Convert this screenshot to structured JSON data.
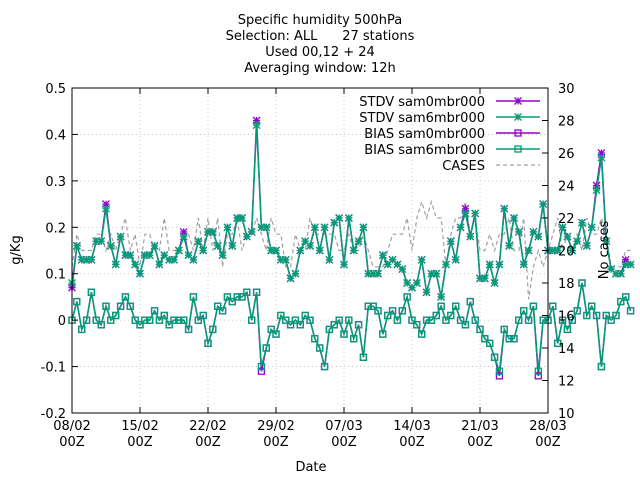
{
  "chart_data": {
    "type": "line",
    "title_lines": [
      "Specific humidity 500hPa",
      "Selection: ALL      27 stations",
      "Used 00,12 + 24",
      "Averaging window: 12h"
    ],
    "xlabel": "Date",
    "ylabel": "g/Kg",
    "y2label": "No cases",
    "x_range": [
      "08/02 00Z",
      "28/03 00Z"
    ],
    "x_ticks": [
      {
        "line1": "08/02",
        "line2": "00Z",
        "day": 0
      },
      {
        "line1": "15/02",
        "line2": "00Z",
        "day": 7
      },
      {
        "line1": "22/02",
        "line2": "00Z",
        "day": 14
      },
      {
        "line1": "29/02",
        "line2": "00Z",
        "day": 21
      },
      {
        "line1": "07/03",
        "line2": "00Z",
        "day": 28
      },
      {
        "line1": "14/03",
        "line2": "00Z",
        "day": 35
      },
      {
        "line1": "21/03",
        "line2": "00Z",
        "day": 42
      },
      {
        "line1": "28/03",
        "line2": "00Z",
        "day": 49
      }
    ],
    "ylim": [
      -0.2,
      0.5
    ],
    "y_ticks": [
      "-0.2",
      "-0.1",
      "0",
      "0.1",
      "0.2",
      "0.3",
      "0.4",
      "0.5"
    ],
    "y2lim": [
      10,
      30
    ],
    "y2_ticks": [
      "10",
      "12",
      "14",
      "16",
      "18",
      "20",
      "22",
      "24",
      "26",
      "28",
      "30"
    ],
    "legend_position": "top-right",
    "x_start_day": 0,
    "x_step_days": 0.5,
    "series": [
      {
        "name": "STDV sam0mbr000",
        "color": "#9400d3",
        "marker": "star",
        "dash": "solid",
        "axis": "y1",
        "values": [
          0.07,
          0.16,
          0.13,
          0.13,
          0.13,
          0.17,
          0.17,
          0.25,
          0.16,
          0.12,
          0.18,
          0.14,
          0.14,
          0.12,
          0.1,
          0.14,
          0.14,
          0.16,
          0.12,
          0.14,
          0.13,
          0.13,
          0.15,
          0.19,
          0.14,
          0.13,
          0.17,
          0.15,
          0.19,
          0.19,
          0.16,
          0.14,
          0.2,
          0.16,
          0.22,
          0.22,
          0.18,
          0.19,
          0.43,
          0.2,
          0.2,
          0.15,
          0.15,
          0.13,
          0.13,
          0.09,
          0.1,
          0.15,
          0.17,
          0.16,
          0.2,
          0.15,
          0.2,
          0.13,
          0.21,
          0.22,
          0.12,
          0.22,
          0.15,
          0.17,
          0.2,
          0.1,
          0.1,
          0.1,
          0.14,
          0.12,
          0.13,
          0.12,
          0.11,
          0.08,
          0.07,
          0.08,
          0.13,
          0.06,
          0.1,
          0.1,
          0.05,
          0.12,
          0.17,
          0.13,
          0.2,
          0.24,
          0.18,
          0.23,
          0.09,
          0.09,
          0.12,
          0.08,
          0.12,
          0.24,
          0.16,
          0.22,
          0.19,
          0.12,
          0.15,
          0.19,
          0.18,
          0.25,
          0.15,
          0.15,
          0.15,
          0.2,
          0.18,
          0.15,
          0.17,
          0.21,
          0.16,
          0.2,
          0.29,
          0.36,
          0.17,
          0.11,
          0.1,
          0.1,
          0.13,
          0.12
        ]
      },
      {
        "name": "STDV sam6mbr000",
        "color": "#009e73",
        "marker": "star",
        "dash": "solid",
        "axis": "y1",
        "values": [
          0.08,
          0.16,
          0.13,
          0.13,
          0.13,
          0.17,
          0.17,
          0.24,
          0.16,
          0.12,
          0.18,
          0.14,
          0.14,
          0.12,
          0.1,
          0.14,
          0.14,
          0.16,
          0.12,
          0.14,
          0.13,
          0.13,
          0.15,
          0.18,
          0.14,
          0.13,
          0.17,
          0.15,
          0.19,
          0.19,
          0.16,
          0.14,
          0.2,
          0.16,
          0.22,
          0.22,
          0.18,
          0.19,
          0.42,
          0.2,
          0.2,
          0.15,
          0.15,
          0.13,
          0.13,
          0.09,
          0.1,
          0.15,
          0.17,
          0.16,
          0.2,
          0.15,
          0.2,
          0.13,
          0.21,
          0.22,
          0.12,
          0.22,
          0.15,
          0.17,
          0.2,
          0.1,
          0.1,
          0.1,
          0.14,
          0.12,
          0.13,
          0.12,
          0.11,
          0.08,
          0.07,
          0.08,
          0.13,
          0.06,
          0.1,
          0.1,
          0.05,
          0.12,
          0.17,
          0.13,
          0.2,
          0.23,
          0.18,
          0.23,
          0.09,
          0.09,
          0.12,
          0.08,
          0.12,
          0.24,
          0.16,
          0.22,
          0.19,
          0.12,
          0.15,
          0.19,
          0.18,
          0.25,
          0.15,
          0.15,
          0.15,
          0.2,
          0.18,
          0.15,
          0.17,
          0.21,
          0.16,
          0.2,
          0.28,
          0.35,
          0.17,
          0.11,
          0.1,
          0.1,
          0.12,
          0.12
        ]
      },
      {
        "name": "BIAS sam0mbr000",
        "color": "#9400d3",
        "marker": "square",
        "dash": "solid",
        "axis": "y1",
        "values": [
          0.0,
          0.04,
          -0.02,
          0.0,
          0.06,
          0.0,
          -0.01,
          0.03,
          0.0,
          0.01,
          0.03,
          0.05,
          0.03,
          0.0,
          -0.01,
          0.0,
          0.0,
          0.02,
          0.0,
          0.01,
          -0.01,
          0.0,
          0.0,
          0.0,
          -0.02,
          0.05,
          0.0,
          0.01,
          -0.05,
          -0.02,
          0.03,
          0.02,
          0.05,
          0.04,
          0.05,
          0.05,
          0.06,
          0.0,
          0.06,
          -0.11,
          -0.06,
          -0.02,
          -0.03,
          0.01,
          0.0,
          -0.01,
          0.0,
          -0.01,
          0.01,
          0.0,
          -0.04,
          -0.06,
          -0.1,
          -0.02,
          -0.01,
          0.0,
          -0.03,
          0.0,
          -0.04,
          -0.01,
          -0.08,
          0.03,
          0.03,
          0.02,
          -0.03,
          0.01,
          0.02,
          0.0,
          0.02,
          0.05,
          0.0,
          -0.01,
          -0.03,
          0.0,
          0.0,
          0.01,
          0.03,
          0.0,
          0.01,
          0.03,
          0.0,
          -0.01,
          0.04,
          0.0,
          -0.02,
          -0.04,
          -0.05,
          -0.08,
          -0.12,
          -0.02,
          -0.04,
          -0.04,
          0.0,
          0.02,
          0.0,
          0.03,
          -0.12,
          0.0,
          0.0,
          0.03,
          -0.05,
          0.0,
          -0.02,
          0.0,
          0.02,
          0.08,
          0.01,
          0.03,
          0.01,
          -0.1,
          0.01,
          0.0,
          0.01,
          0.04,
          0.05,
          0.02
        ]
      },
      {
        "name": "BIAS sam6mbr000",
        "color": "#009e73",
        "marker": "square",
        "dash": "solid",
        "axis": "y1",
        "values": [
          0.0,
          0.04,
          -0.02,
          0.0,
          0.06,
          0.0,
          -0.01,
          0.03,
          0.0,
          0.01,
          0.03,
          0.05,
          0.03,
          0.0,
          -0.01,
          0.0,
          0.0,
          0.02,
          0.0,
          0.01,
          -0.01,
          0.0,
          0.0,
          0.0,
          -0.02,
          0.05,
          0.0,
          0.01,
          -0.05,
          -0.02,
          0.03,
          0.02,
          0.05,
          0.04,
          0.05,
          0.05,
          0.06,
          0.0,
          0.06,
          -0.1,
          -0.06,
          -0.02,
          -0.03,
          0.01,
          0.0,
          -0.01,
          0.0,
          -0.01,
          0.01,
          0.0,
          -0.04,
          -0.06,
          -0.1,
          -0.02,
          -0.01,
          0.0,
          -0.03,
          0.0,
          -0.04,
          -0.01,
          -0.08,
          0.03,
          0.03,
          0.02,
          -0.03,
          0.01,
          0.02,
          0.0,
          0.02,
          0.05,
          0.0,
          -0.01,
          -0.03,
          0.0,
          0.0,
          0.01,
          0.03,
          0.0,
          0.01,
          0.03,
          0.0,
          -0.01,
          0.04,
          0.0,
          -0.02,
          -0.04,
          -0.05,
          -0.08,
          -0.11,
          -0.02,
          -0.04,
          -0.04,
          0.0,
          0.02,
          0.0,
          0.03,
          -0.11,
          0.0,
          0.0,
          0.03,
          -0.05,
          0.0,
          -0.02,
          0.0,
          0.02,
          0.08,
          0.01,
          0.03,
          0.01,
          -0.1,
          0.01,
          0.0,
          0.01,
          0.04,
          0.05,
          0.02
        ]
      },
      {
        "name": "CASES",
        "color": "#a0a0a0",
        "marker": "none",
        "dash": "dashed",
        "axis": "y2",
        "values": [
          19,
          21,
          20,
          20,
          20,
          21,
          21,
          20,
          21,
          20,
          21,
          22,
          20,
          21,
          19,
          21,
          21,
          20,
          20,
          22,
          20,
          20,
          20,
          21,
          21,
          20,
          22,
          20,
          22,
          20,
          22,
          19,
          21,
          21,
          22,
          20,
          21,
          21,
          22,
          21,
          20,
          22,
          21,
          21,
          19,
          19,
          21,
          20,
          20,
          22,
          21,
          21,
          21,
          21,
          21,
          20,
          20,
          21,
          20,
          20,
          21,
          20,
          19,
          19,
          19,
          20,
          21,
          21,
          21,
          22,
          20,
          22,
          23,
          22,
          23,
          22,
          22,
          19,
          21,
          22,
          22,
          23,
          21,
          22,
          20,
          20,
          21,
          20,
          21,
          21,
          22,
          20,
          20,
          22,
          17,
          19,
          20,
          19,
          20,
          21,
          22,
          20,
          21,
          20,
          21,
          20,
          22,
          21,
          21,
          22,
          21,
          19,
          19,
          19,
          20,
          20
        ]
      }
    ]
  }
}
